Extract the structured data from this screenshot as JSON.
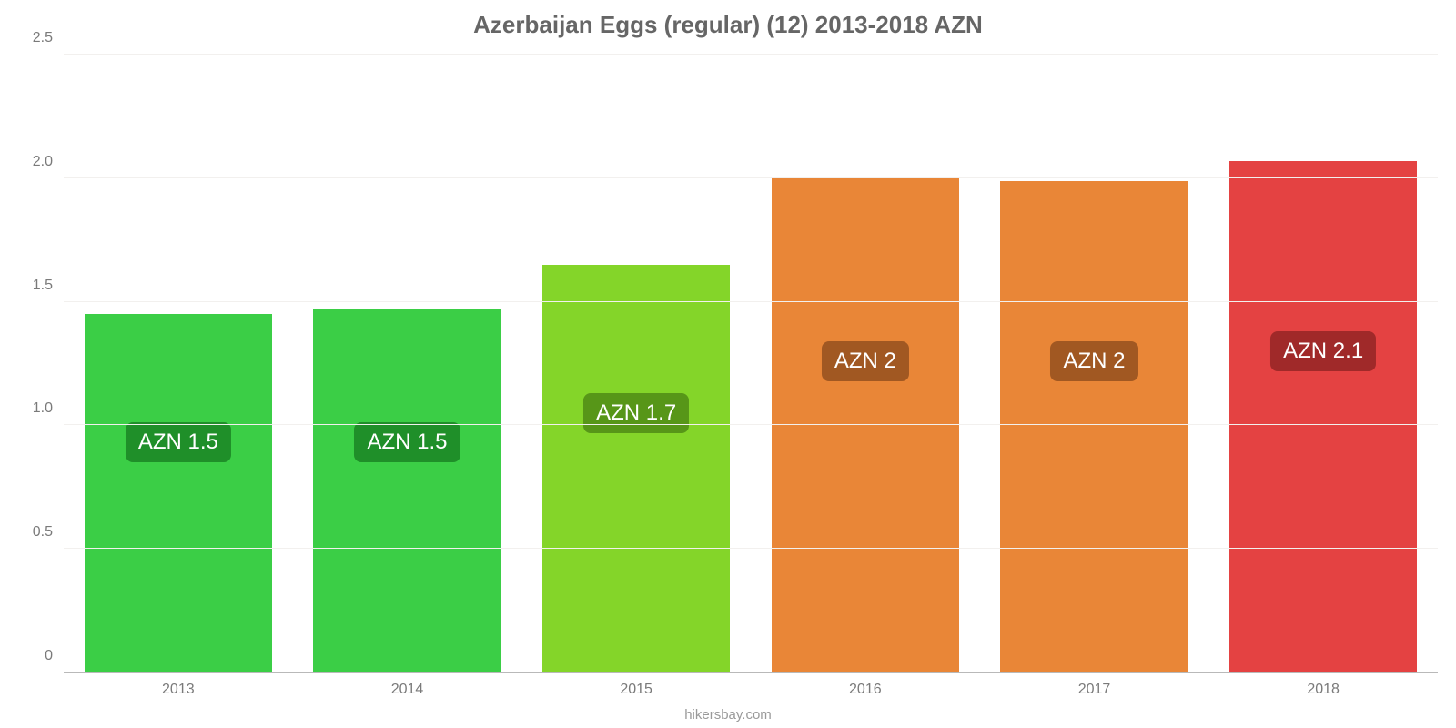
{
  "chart": {
    "type": "bar",
    "title": "Azerbaijan Eggs (regular) (12) 2013-2018 AZN",
    "title_fontsize": 26,
    "title_color": "#666666",
    "source": "hikersbay.com",
    "source_color": "#9a9a9a",
    "background_color": "#ffffff",
    "grid_color": "#f2f0ee",
    "axis_color": "#b9b9b9",
    "tick_label_color": "#7a7a7a",
    "tick_label_fontsize": 16,
    "ylim": [
      0,
      2.5
    ],
    "ytick_step": 0.5,
    "yticks": [
      {
        "value": 0,
        "label": "0"
      },
      {
        "value": 0.5,
        "label": "0.5"
      },
      {
        "value": 1.0,
        "label": "1.0"
      },
      {
        "value": 1.5,
        "label": "1.5"
      },
      {
        "value": 2.0,
        "label": "2.0"
      },
      {
        "value": 2.5,
        "label": "2.5"
      }
    ],
    "bar_width": 0.82,
    "value_badge_fontsize": 24,
    "value_badge_text_color": "#ffffff",
    "categories": [
      "2013",
      "2014",
      "2015",
      "2016",
      "2017",
      "2018"
    ],
    "series": [
      {
        "value": 1.45,
        "label": "AZN 1.5",
        "bar_color": "#3bce46",
        "badge_bg": "#1f8f29",
        "badge_y": 0.85
      },
      {
        "value": 1.47,
        "label": "AZN 1.5",
        "bar_color": "#3bce46",
        "badge_bg": "#1f8f29",
        "badge_y": 0.85
      },
      {
        "value": 1.65,
        "label": "AZN 1.7",
        "bar_color": "#84d529",
        "badge_bg": "#579618",
        "badge_y": 0.97
      },
      {
        "value": 2.0,
        "label": "AZN 2",
        "bar_color": "#e98637",
        "badge_bg": "#a15822",
        "badge_y": 1.18
      },
      {
        "value": 1.99,
        "label": "AZN 2",
        "bar_color": "#e98637",
        "badge_bg": "#a15822",
        "badge_y": 1.18
      },
      {
        "value": 2.07,
        "label": "AZN 2.1",
        "bar_color": "#e44242",
        "badge_bg": "#a02929",
        "badge_y": 1.22
      }
    ]
  }
}
